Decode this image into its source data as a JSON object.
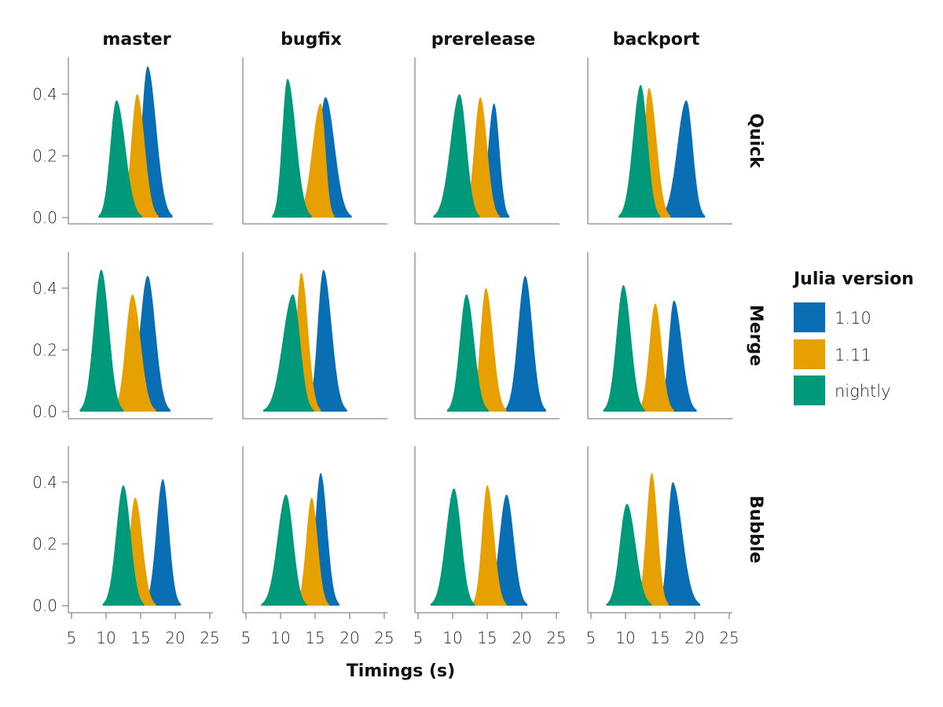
{
  "chart_data": {
    "type": "area",
    "columns": [
      "master",
      "bugfix",
      "prerelease",
      "backport"
    ],
    "rows": [
      "Quick",
      "Merge",
      "Bubble"
    ],
    "xlabel": "Timings (s)",
    "ylabel": "",
    "xlim": [
      5,
      25
    ],
    "ylim": [
      0,
      0.5
    ],
    "xticks": [
      5,
      10,
      15,
      20,
      25
    ],
    "yticks": [
      0.0,
      0.2,
      0.4
    ],
    "ytick_labels": [
      "0.0",
      "0.2",
      "0.4"
    ],
    "legend": {
      "title": "Julia version",
      "placement": "right",
      "entries": [
        "1.10",
        "1.11",
        "nightly"
      ]
    },
    "series_colors": {
      "1.10": "#0a6eb4",
      "1.11": "#e6a100",
      "nightly": "#00997a"
    },
    "panels": [
      {
        "row": "Quick",
        "col": "master",
        "densities": [
          {
            "name": "1.10",
            "peak_x": 16.0,
            "peak_y": 0.49,
            "x_range": [
              13.5,
              19.6
            ]
          },
          {
            "name": "1.11",
            "peak_x": 14.5,
            "peak_y": 0.4,
            "x_range": [
              12.0,
              17.6
            ]
          },
          {
            "name": "nightly",
            "peak_x": 11.5,
            "peak_y": 0.38,
            "x_range": [
              8.9,
              15.2
            ]
          }
        ]
      },
      {
        "row": "Quick",
        "col": "bugfix",
        "densities": [
          {
            "name": "1.10",
            "peak_x": 16.5,
            "peak_y": 0.39,
            "x_range": [
              13.5,
              20.3
            ]
          },
          {
            "name": "1.11",
            "peak_x": 15.8,
            "peak_y": 0.37,
            "x_range": [
              12.3,
              17.8
            ]
          },
          {
            "name": "nightly",
            "peak_x": 11.0,
            "peak_y": 0.45,
            "x_range": [
              8.8,
              14.5
            ]
          }
        ]
      },
      {
        "row": "Quick",
        "col": "prerelease",
        "densities": [
          {
            "name": "1.10",
            "peak_x": 16.0,
            "peak_y": 0.37,
            "x_range": [
              13.5,
              18.2
            ]
          },
          {
            "name": "1.11",
            "peak_x": 14.0,
            "peak_y": 0.39,
            "x_range": [
              11.5,
              16.8
            ]
          },
          {
            "name": "nightly",
            "peak_x": 11.0,
            "peak_y": 0.4,
            "x_range": [
              7.2,
              13.9
            ]
          }
        ]
      },
      {
        "row": "Quick",
        "col": "backport",
        "densities": [
          {
            "name": "1.10",
            "peak_x": 18.8,
            "peak_y": 0.38,
            "x_range": [
              15.0,
              21.5
            ]
          },
          {
            "name": "1.11",
            "peak_x": 13.4,
            "peak_y": 0.42,
            "x_range": [
              11.2,
              16.5
            ]
          },
          {
            "name": "nightly",
            "peak_x": 12.2,
            "peak_y": 0.43,
            "x_range": [
              9.0,
              15.0
            ]
          }
        ]
      },
      {
        "row": "Merge",
        "col": "master",
        "densities": [
          {
            "name": "1.10",
            "peak_x": 16.0,
            "peak_y": 0.44,
            "x_range": [
              12.8,
              19.3
            ]
          },
          {
            "name": "1.11",
            "peak_x": 13.8,
            "peak_y": 0.38,
            "x_range": [
              11.0,
              17.2
            ]
          },
          {
            "name": "nightly",
            "peak_x": 9.3,
            "peak_y": 0.46,
            "x_range": [
              6.2,
              12.5
            ]
          }
        ]
      },
      {
        "row": "Merge",
        "col": "bugfix",
        "densities": [
          {
            "name": "1.10",
            "peak_x": 16.2,
            "peak_y": 0.46,
            "x_range": [
              13.8,
              19.6
            ]
          },
          {
            "name": "1.11",
            "peak_x": 13.0,
            "peak_y": 0.45,
            "x_range": [
              10.8,
              15.8
            ]
          },
          {
            "name": "nightly",
            "peak_x": 11.8,
            "peak_y": 0.38,
            "x_range": [
              7.5,
              14.8
            ]
          }
        ]
      },
      {
        "row": "Merge",
        "col": "prerelease",
        "densities": [
          {
            "name": "1.10",
            "peak_x": 20.5,
            "peak_y": 0.44,
            "x_range": [
              17.5,
              23.5
            ]
          },
          {
            "name": "1.11",
            "peak_x": 14.8,
            "peak_y": 0.4,
            "x_range": [
              12.5,
              17.8
            ]
          },
          {
            "name": "nightly",
            "peak_x": 12.0,
            "peak_y": 0.38,
            "x_range": [
              9.2,
              15.2
            ]
          }
        ]
      },
      {
        "row": "Merge",
        "col": "backport",
        "densities": [
          {
            "name": "1.10",
            "peak_x": 17.0,
            "peak_y": 0.36,
            "x_range": [
              14.8,
              20.3
            ]
          },
          {
            "name": "1.11",
            "peak_x": 14.3,
            "peak_y": 0.35,
            "x_range": [
              11.8,
              17.0
            ]
          },
          {
            "name": "nightly",
            "peak_x": 9.7,
            "peak_y": 0.41,
            "x_range": [
              6.8,
              12.8
            ]
          }
        ]
      },
      {
        "row": "Bubble",
        "col": "master",
        "densities": [
          {
            "name": "1.10",
            "peak_x": 18.2,
            "peak_y": 0.41,
            "x_range": [
              15.5,
              20.8
            ]
          },
          {
            "name": "1.11",
            "peak_x": 14.2,
            "peak_y": 0.35,
            "x_range": [
              11.8,
              17.2
            ]
          },
          {
            "name": "nightly",
            "peak_x": 12.5,
            "peak_y": 0.39,
            "x_range": [
              9.5,
              15.5
            ]
          }
        ]
      },
      {
        "row": "Bubble",
        "col": "bugfix",
        "densities": [
          {
            "name": "1.10",
            "peak_x": 15.8,
            "peak_y": 0.43,
            "x_range": [
              13.5,
              18.5
            ]
          },
          {
            "name": "1.11",
            "peak_x": 14.5,
            "peak_y": 0.35,
            "x_range": [
              12.2,
              17.0
            ]
          },
          {
            "name": "nightly",
            "peak_x": 10.8,
            "peak_y": 0.36,
            "x_range": [
              7.2,
              13.8
            ]
          }
        ]
      },
      {
        "row": "Bubble",
        "col": "prerelease",
        "densities": [
          {
            "name": "1.10",
            "peak_x": 17.8,
            "peak_y": 0.36,
            "x_range": [
              14.8,
              20.8
            ]
          },
          {
            "name": "1.11",
            "peak_x": 15.0,
            "peak_y": 0.39,
            "x_range": [
              12.8,
              17.8
            ]
          },
          {
            "name": "nightly",
            "peak_x": 10.2,
            "peak_y": 0.38,
            "x_range": [
              6.8,
              13.2
            ]
          }
        ]
      },
      {
        "row": "Bubble",
        "col": "backport",
        "densities": [
          {
            "name": "1.10",
            "peak_x": 16.8,
            "peak_y": 0.4,
            "x_range": [
              14.8,
              20.8
            ]
          },
          {
            "name": "1.11",
            "peak_x": 13.8,
            "peak_y": 0.43,
            "x_range": [
              11.5,
              16.2
            ]
          },
          {
            "name": "nightly",
            "peak_x": 10.2,
            "peak_y": 0.33,
            "x_range": [
              7.2,
              13.8
            ]
          }
        ]
      }
    ]
  }
}
